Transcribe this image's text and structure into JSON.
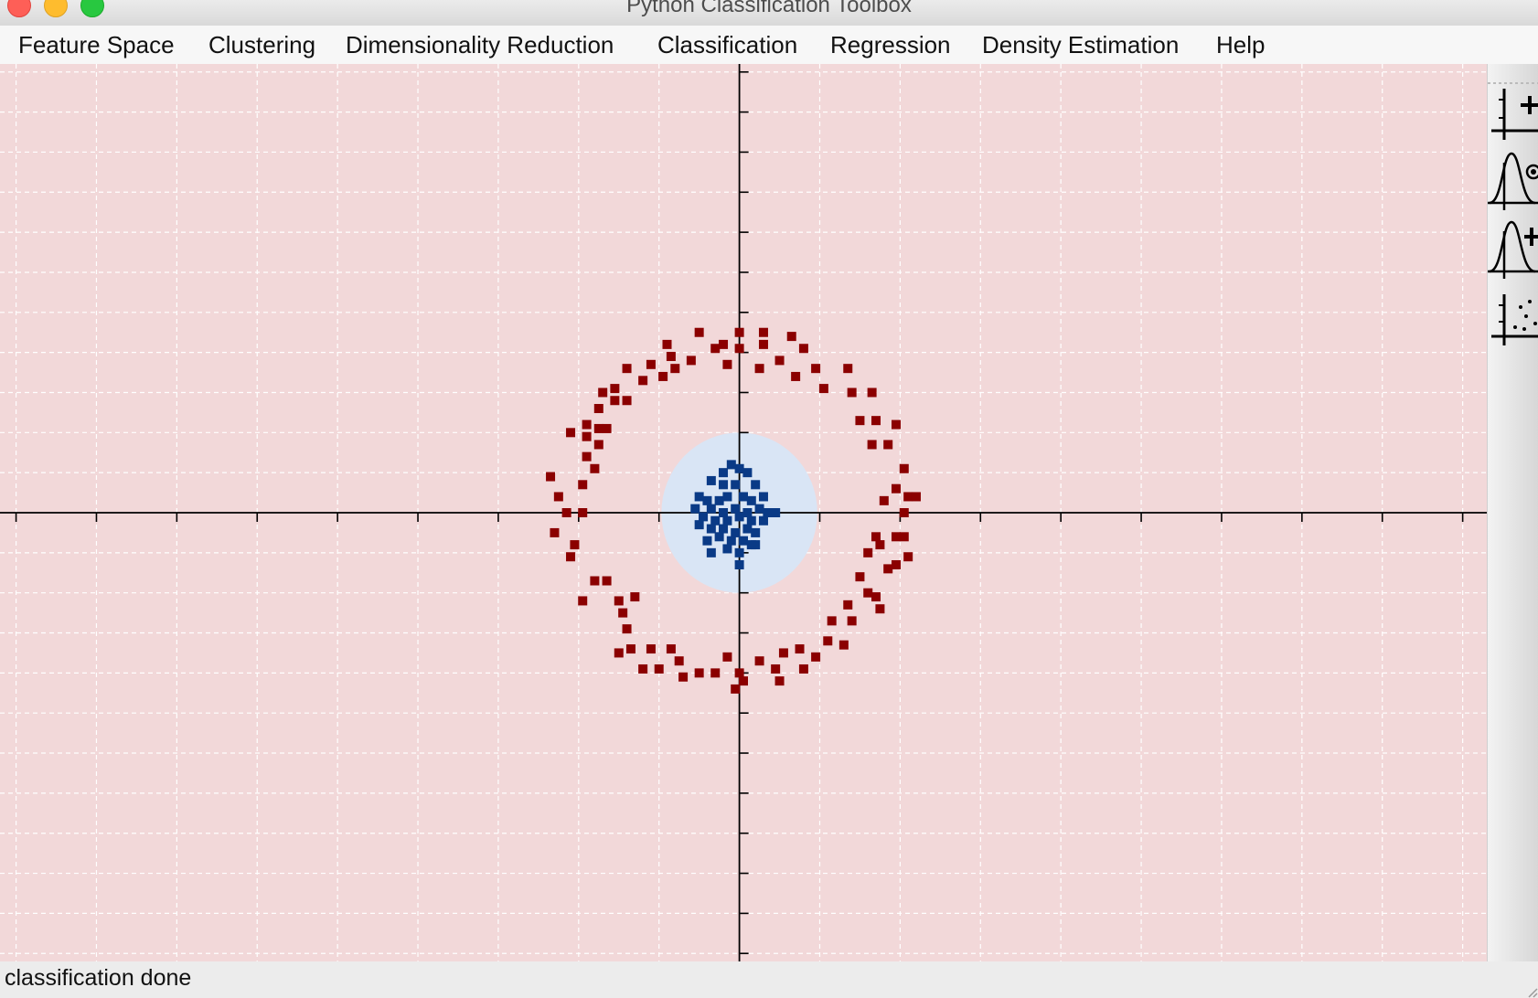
{
  "window": {
    "title": "Python Classification Toolbox"
  },
  "menu": [
    {
      "id": "feature-space",
      "label": "Feature Space"
    },
    {
      "id": "clustering",
      "label": "Clustering"
    },
    {
      "id": "dimensionality-reduction",
      "label": "Dimensionality Reduction"
    },
    {
      "id": "classification",
      "label": "Classification"
    },
    {
      "id": "regression",
      "label": "Regression"
    },
    {
      "id": "density-estimation",
      "label": "Density Estimation"
    },
    {
      "id": "help",
      "label": "Help"
    }
  ],
  "toolbar": [
    {
      "name": "add-point-tool-icon"
    },
    {
      "name": "gaussian-select-tool-icon"
    },
    {
      "name": "gaussian-add-tool-icon"
    },
    {
      "name": "scatter-points-tool-icon"
    }
  ],
  "status": {
    "text": "classification done"
  },
  "chart_data": {
    "type": "scatter",
    "xlim": [
      -9.2,
      9.3
    ],
    "ylim": [
      -5.6,
      5.6
    ],
    "grid": true,
    "colors": {
      "background": "#f2d8d9",
      "inner_region": "#d9e5f5",
      "outer_class": "#8b0000",
      "inner_class": "#0a3a86",
      "grid": "#ffffff",
      "axis": "#000000"
    },
    "decision_region": {
      "shape": "ellipse",
      "center": [
        0,
        0
      ],
      "radius_x": 0.97,
      "radius_y": 1.0
    },
    "series": [
      {
        "values": [
          [
            -2.35,
            0.45
          ],
          [
            -2.3,
            -0.25
          ],
          [
            -2.25,
            0.2
          ],
          [
            -2.15,
            0.0
          ],
          [
            -2.05,
            -0.4
          ],
          [
            -2.1,
            -0.55
          ],
          [
            -1.95,
            0.35
          ],
          [
            -1.95,
            0.0
          ],
          [
            -2.1,
            1.0
          ],
          [
            -1.9,
            0.95
          ],
          [
            -1.9,
            0.7
          ],
          [
            -1.8,
            0.55
          ],
          [
            -1.9,
            1.1
          ],
          [
            -1.75,
            1.05
          ],
          [
            -1.65,
            1.05
          ],
          [
            -1.75,
            0.85
          ],
          [
            -1.75,
            1.3
          ],
          [
            -1.7,
            1.5
          ],
          [
            -1.55,
            1.4
          ],
          [
            -1.55,
            1.55
          ],
          [
            -1.4,
            1.4
          ],
          [
            -1.4,
            1.8
          ],
          [
            -1.2,
            1.65
          ],
          [
            -1.1,
            1.85
          ],
          [
            -0.95,
            1.7
          ],
          [
            -0.85,
            1.95
          ],
          [
            -0.8,
            1.8
          ],
          [
            -0.6,
            1.9
          ],
          [
            -0.5,
            2.25
          ],
          [
            -0.9,
            2.1
          ],
          [
            -0.3,
            2.05
          ],
          [
            -0.2,
            2.1
          ],
          [
            -0.15,
            1.85
          ],
          [
            0.0,
            2.05
          ],
          [
            0.0,
            2.25
          ],
          [
            0.3,
            2.25
          ],
          [
            0.3,
            2.1
          ],
          [
            0.25,
            1.8
          ],
          [
            0.5,
            1.9
          ],
          [
            0.65,
            2.2
          ],
          [
            0.8,
            2.05
          ],
          [
            0.7,
            1.7
          ],
          [
            0.95,
            1.8
          ],
          [
            1.05,
            1.55
          ],
          [
            1.35,
            1.8
          ],
          [
            1.4,
            1.5
          ],
          [
            1.65,
            1.5
          ],
          [
            1.5,
            1.15
          ],
          [
            1.7,
            1.15
          ],
          [
            1.95,
            1.1
          ],
          [
            1.65,
            0.85
          ],
          [
            1.85,
            0.85
          ],
          [
            2.05,
            0.55
          ],
          [
            1.95,
            0.3
          ],
          [
            1.8,
            0.15
          ],
          [
            2.1,
            0.2
          ],
          [
            2.2,
            0.2
          ],
          [
            2.05,
            0.0
          ],
          [
            1.7,
            -0.3
          ],
          [
            1.95,
            -0.3
          ],
          [
            2.05,
            -0.3
          ],
          [
            1.6,
            -0.5
          ],
          [
            1.75,
            -0.4
          ],
          [
            2.1,
            -0.55
          ],
          [
            1.95,
            -0.65
          ],
          [
            1.85,
            -0.7
          ],
          [
            1.5,
            -0.8
          ],
          [
            1.7,
            -1.05
          ],
          [
            1.6,
            -1.0
          ],
          [
            1.75,
            -1.2
          ],
          [
            1.35,
            -1.15
          ],
          [
            1.4,
            -1.35
          ],
          [
            1.15,
            -1.35
          ],
          [
            1.1,
            -1.6
          ],
          [
            1.3,
            -1.65
          ],
          [
            0.95,
            -1.8
          ],
          [
            0.75,
            -1.7
          ],
          [
            0.45,
            -1.95
          ],
          [
            0.55,
            -1.75
          ],
          [
            0.8,
            -1.95
          ],
          [
            0.5,
            -2.1
          ],
          [
            0.25,
            -1.85
          ],
          [
            0.0,
            -2.0
          ],
          [
            0.05,
            -2.1
          ],
          [
            -0.15,
            -1.8
          ],
          [
            -0.05,
            -2.2
          ],
          [
            -0.3,
            -2.0
          ],
          [
            -0.5,
            -2.0
          ],
          [
            -0.7,
            -2.05
          ],
          [
            -0.75,
            -1.85
          ],
          [
            -0.85,
            -1.7
          ],
          [
            -1.0,
            -1.95
          ],
          [
            -1.1,
            -1.7
          ],
          [
            -1.2,
            -1.95
          ],
          [
            -1.35,
            -1.7
          ],
          [
            -1.5,
            -1.75
          ],
          [
            -1.4,
            -1.45
          ],
          [
            -1.45,
            -1.25
          ],
          [
            -1.3,
            -1.05
          ],
          [
            -1.5,
            -1.1
          ],
          [
            -1.65,
            -0.85
          ],
          [
            -1.8,
            -0.85
          ],
          [
            -1.95,
            -1.1
          ]
        ]
      },
      {
        "values": [
          [
            -0.1,
            0.6
          ],
          [
            0.0,
            0.55
          ],
          [
            -0.2,
            0.5
          ],
          [
            0.1,
            0.5
          ],
          [
            -0.35,
            0.4
          ],
          [
            -0.2,
            0.35
          ],
          [
            -0.05,
            0.35
          ],
          [
            0.2,
            0.35
          ],
          [
            -0.5,
            0.2
          ],
          [
            -0.4,
            0.15
          ],
          [
            -0.25,
            0.15
          ],
          [
            -0.15,
            0.2
          ],
          [
            0.05,
            0.2
          ],
          [
            0.15,
            0.15
          ],
          [
            0.3,
            0.2
          ],
          [
            -0.55,
            0.05
          ],
          [
            -0.35,
            0.05
          ],
          [
            -0.2,
            0.0
          ],
          [
            -0.05,
            0.05
          ],
          [
            0.1,
            0.0
          ],
          [
            0.25,
            0.05
          ],
          [
            0.35,
            0.0
          ],
          [
            -0.45,
            -0.05
          ],
          [
            -0.3,
            -0.1
          ],
          [
            -0.15,
            -0.1
          ],
          [
            0.0,
            -0.05
          ],
          [
            0.15,
            -0.1
          ],
          [
            0.3,
            -0.1
          ],
          [
            0.45,
            0.0
          ],
          [
            -0.5,
            -0.15
          ],
          [
            -0.35,
            -0.2
          ],
          [
            -0.2,
            -0.2
          ],
          [
            -0.05,
            -0.25
          ],
          [
            0.1,
            -0.2
          ],
          [
            0.2,
            -0.25
          ],
          [
            -0.4,
            -0.35
          ],
          [
            -0.25,
            -0.3
          ],
          [
            -0.1,
            -0.35
          ],
          [
            0.05,
            -0.35
          ],
          [
            0.15,
            -0.4
          ],
          [
            -0.35,
            -0.5
          ],
          [
            -0.15,
            -0.45
          ],
          [
            0.0,
            -0.5
          ],
          [
            0.2,
            -0.4
          ],
          [
            0.0,
            -0.65
          ]
        ]
      }
    ]
  }
}
